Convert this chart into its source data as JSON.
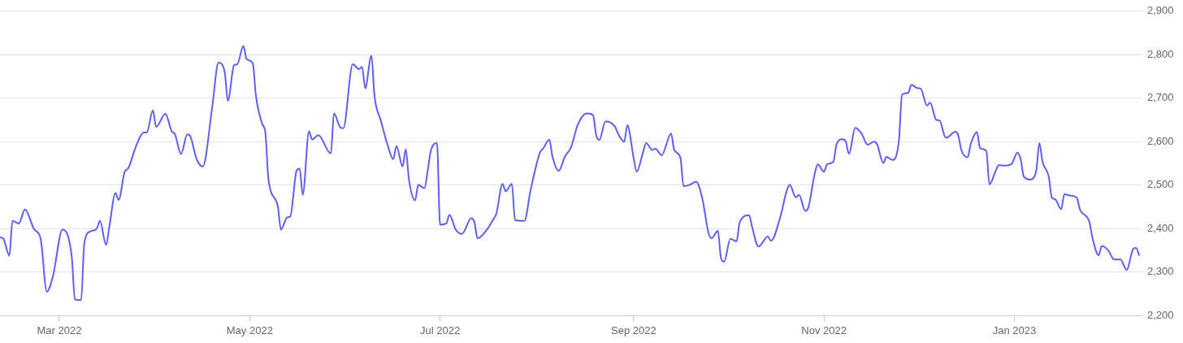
{
  "chart_data": {
    "type": "line",
    "marker": "none",
    "legend": false,
    "grid": "y",
    "xlim": [
      "2022-02-10",
      "2023-02-11"
    ],
    "ylim": [
      2200,
      2900
    ],
    "xticks": [
      {
        "value": "2022-03-01",
        "label": "Mar 2022"
      },
      {
        "value": "2022-05-01",
        "label": "May 2022"
      },
      {
        "value": "2022-07-01",
        "label": "Jul 2022"
      },
      {
        "value": "2022-09-01",
        "label": "Sep 2022"
      },
      {
        "value": "2022-11-01",
        "label": "Nov 2022"
      },
      {
        "value": "2023-01-01",
        "label": "Jan 2023"
      }
    ],
    "yticks": [
      {
        "value": 2200,
        "label": "2,200"
      },
      {
        "value": 2300,
        "label": "2,300"
      },
      {
        "value": 2400,
        "label": "2,400"
      },
      {
        "value": 2500,
        "label": "2,500"
      },
      {
        "value": 2600,
        "label": "2,600"
      },
      {
        "value": 2700,
        "label": "2,700"
      },
      {
        "value": 2800,
        "label": "2,800"
      },
      {
        "value": 2900,
        "label": "2,900"
      }
    ],
    "series": [
      {
        "color": "#5f5ff6",
        "x": [
          "2022-02-10",
          "2022-02-11",
          "2022-02-13",
          "2022-02-14",
          "2022-02-16",
          "2022-02-18",
          "2022-02-21",
          "2022-02-23",
          "2022-02-25",
          "2022-02-27",
          "2022-03-02",
          "2022-03-05",
          "2022-03-06",
          "2022-03-08",
          "2022-03-09",
          "2022-03-11",
          "2022-03-13",
          "2022-03-14",
          "2022-03-16",
          "2022-03-17",
          "2022-03-19",
          "2022-03-20",
          "2022-03-22",
          "2022-03-23",
          "2022-03-25",
          "2022-03-26",
          "2022-03-28",
          "2022-03-29",
          "2022-03-31",
          "2022-04-01",
          "2022-04-04",
          "2022-04-06",
          "2022-04-07",
          "2022-04-09",
          "2022-04-11",
          "2022-04-12",
          "2022-04-14",
          "2022-04-16",
          "2022-04-19",
          "2022-04-21",
          "2022-04-23",
          "2022-04-24",
          "2022-04-26",
          "2022-04-27",
          "2022-04-29",
          "2022-04-30",
          "2022-05-02",
          "2022-05-03",
          "2022-05-05",
          "2022-05-06",
          "2022-05-07",
          "2022-05-10",
          "2022-05-11",
          "2022-05-13",
          "2022-05-14",
          "2022-05-16",
          "2022-05-17",
          "2022-05-18",
          "2022-05-20",
          "2022-05-21",
          "2022-05-23",
          "2022-05-27",
          "2022-05-28",
          "2022-05-30",
          "2022-05-31",
          "2022-06-03",
          "2022-06-05",
          "2022-06-06",
          "2022-06-07",
          "2022-06-09",
          "2022-06-10",
          "2022-06-12",
          "2022-06-14",
          "2022-06-16",
          "2022-06-17",
          "2022-06-19",
          "2022-06-20",
          "2022-06-21",
          "2022-06-23",
          "2022-06-24",
          "2022-06-26",
          "2022-06-27",
          "2022-06-28",
          "2022-06-30",
          "2022-07-01",
          "2022-07-03",
          "2022-07-04",
          "2022-07-06",
          "2022-07-08",
          "2022-07-11",
          "2022-07-12",
          "2022-07-13",
          "2022-07-16",
          "2022-07-18",
          "2022-07-19",
          "2022-07-21",
          "2022-07-22",
          "2022-07-24",
          "2022-07-25",
          "2022-07-28",
          "2022-07-30",
          "2022-08-02",
          "2022-08-03",
          "2022-08-05",
          "2022-08-06",
          "2022-08-08",
          "2022-08-10",
          "2022-08-12",
          "2022-08-14",
          "2022-08-17",
          "2022-08-19",
          "2022-08-20",
          "2022-08-21",
          "2022-08-23",
          "2022-08-26",
          "2022-08-27",
          "2022-08-29",
          "2022-08-30",
          "2022-09-01",
          "2022-09-02",
          "2022-09-04",
          "2022-09-05",
          "2022-09-07",
          "2022-09-08",
          "2022-09-10",
          "2022-09-13",
          "2022-09-14",
          "2022-09-16",
          "2022-09-17",
          "2022-09-19",
          "2022-09-21",
          "2022-09-23",
          "2022-09-25",
          "2022-09-26",
          "2022-09-28",
          "2022-09-29",
          "2022-09-30",
          "2022-10-02",
          "2022-10-04",
          "2022-10-05",
          "2022-10-08",
          "2022-10-09",
          "2022-10-11",
          "2022-10-14",
          "2022-10-15",
          "2022-10-18",
          "2022-10-20",
          "2022-10-21",
          "2022-10-23",
          "2022-10-24",
          "2022-10-26",
          "2022-10-27",
          "2022-10-29",
          "2022-10-30",
          "2022-11-01",
          "2022-11-02",
          "2022-11-04",
          "2022-11-05",
          "2022-11-07",
          "2022-11-08",
          "2022-11-09",
          "2022-11-11",
          "2022-11-13",
          "2022-11-15",
          "2022-11-17",
          "2022-11-18",
          "2022-11-20",
          "2022-11-21",
          "2022-11-23",
          "2022-11-25",
          "2022-11-26",
          "2022-11-28",
          "2022-11-29",
          "2022-12-01",
          "2022-12-02",
          "2022-12-04",
          "2022-12-05",
          "2022-12-07",
          "2022-12-08",
          "2022-12-10",
          "2022-12-11",
          "2022-12-13",
          "2022-12-14",
          "2022-12-15",
          "2022-12-17",
          "2022-12-18",
          "2022-12-20",
          "2022-12-21",
          "2022-12-23",
          "2022-12-24",
          "2022-12-26",
          "2022-12-27",
          "2022-12-29",
          "2022-12-31",
          "2023-01-02",
          "2023-01-03",
          "2023-01-04",
          "2023-01-06",
          "2023-01-08",
          "2023-01-09",
          "2023-01-10",
          "2023-01-12",
          "2023-01-13",
          "2023-01-14",
          "2023-01-16",
          "2023-01-17",
          "2023-01-19",
          "2023-01-21",
          "2023-01-22",
          "2023-01-25",
          "2023-01-26",
          "2023-01-28",
          "2023-01-29",
          "2023-01-31",
          "2023-02-02",
          "2023-02-04",
          "2023-02-06",
          "2023-02-08",
          "2023-02-09",
          "2023-02-10"
        ],
        "values": [
          2380,
          2378,
          2338,
          2418,
          2412,
          2444,
          2398,
          2378,
          2255,
          2292,
          2398,
          2335,
          2237,
          2236,
          2366,
          2394,
          2400,
          2418,
          2363,
          2403,
          2482,
          2466,
          2532,
          2538,
          2578,
          2597,
          2621,
          2621,
          2672,
          2634,
          2664,
          2624,
          2618,
          2572,
          2617,
          2612,
          2560,
          2543,
          2680,
          2782,
          2760,
          2694,
          2776,
          2778,
          2820,
          2790,
          2780,
          2705,
          2641,
          2622,
          2514,
          2452,
          2398,
          2426,
          2428,
          2533,
          2538,
          2478,
          2624,
          2605,
          2615,
          2573,
          2665,
          2633,
          2631,
          2778,
          2767,
          2772,
          2723,
          2798,
          2704,
          2649,
          2597,
          2560,
          2590,
          2543,
          2583,
          2514,
          2465,
          2501,
          2493,
          2532,
          2578,
          2597,
          2409,
          2412,
          2432,
          2398,
          2388,
          2424,
          2415,
          2378,
          2398,
          2421,
          2434,
          2503,
          2486,
          2503,
          2420,
          2418,
          2489,
          2575,
          2584,
          2605,
          2566,
          2533,
          2566,
          2588,
          2637,
          2665,
          2661,
          2615,
          2604,
          2647,
          2635,
          2619,
          2600,
          2638,
          2563,
          2531,
          2575,
          2597,
          2581,
          2584,
          2569,
          2619,
          2581,
          2563,
          2498,
          2501,
          2508,
          2470,
          2390,
          2378,
          2395,
          2332,
          2324,
          2377,
          2371,
          2415,
          2431,
          2403,
          2359,
          2382,
          2372,
          2427,
          2486,
          2501,
          2472,
          2478,
          2441,
          2449,
          2526,
          2548,
          2531,
          2548,
          2554,
          2594,
          2606,
          2600,
          2572,
          2632,
          2619,
          2593,
          2600,
          2594,
          2551,
          2565,
          2558,
          2603,
          2708,
          2712,
          2731,
          2723,
          2722,
          2683,
          2690,
          2650,
          2649,
          2609,
          2612,
          2623,
          2615,
          2581,
          2564,
          2594,
          2622,
          2585,
          2579,
          2502,
          2533,
          2546,
          2545,
          2548,
          2575,
          2560,
          2520,
          2513,
          2533,
          2597,
          2554,
          2520,
          2471,
          2468,
          2445,
          2479,
          2476,
          2471,
          2444,
          2416,
          2379,
          2339,
          2360,
          2351,
          2329,
          2329,
          2305,
          2353,
          2356,
          2338
        ]
      }
    ]
  }
}
